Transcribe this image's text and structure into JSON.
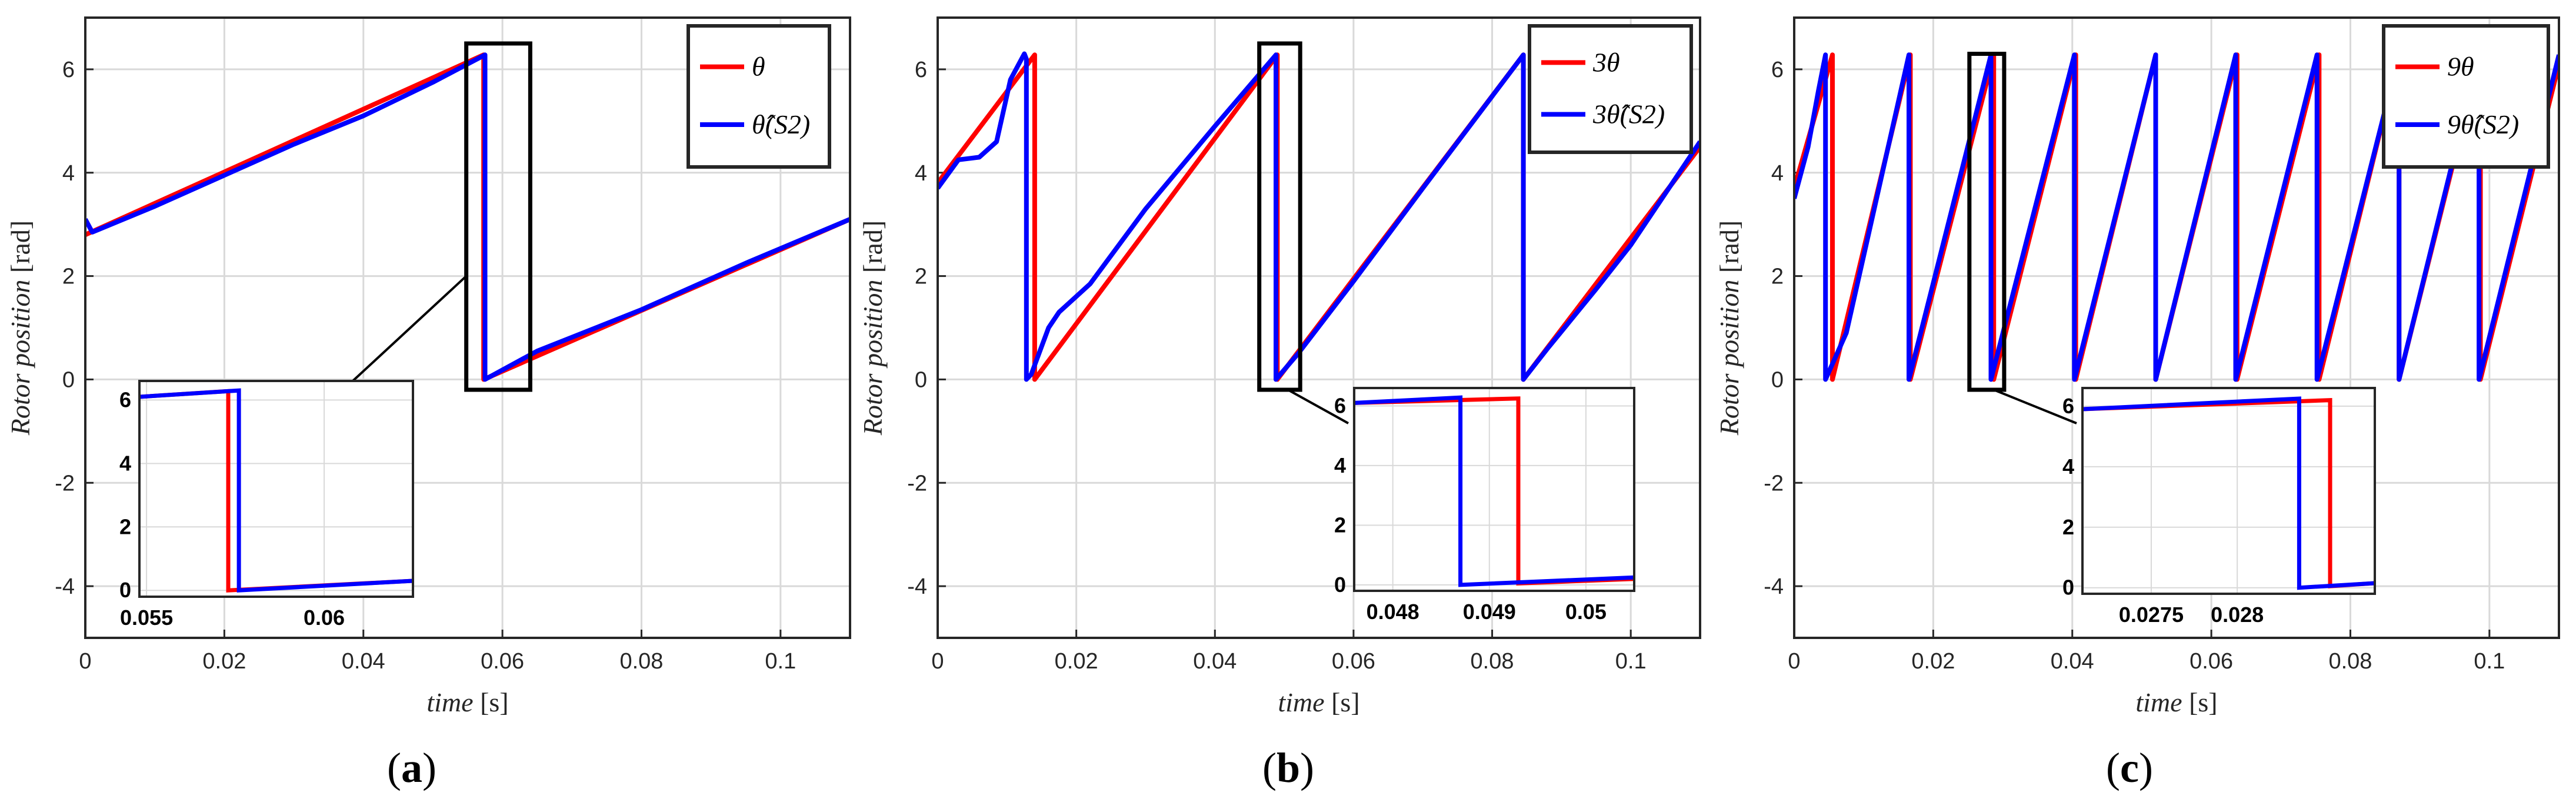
{
  "chart_data": [
    {
      "type": "line",
      "caption": "(a)",
      "xlabel_italic": "time",
      "xlabel_unit": "[s]",
      "ylabel_italic": "Rotor position",
      "ylabel_unit": "[rad]",
      "xlim": [
        0,
        0.11
      ],
      "ylim": [
        -5,
        7
      ],
      "xticks": [
        "0",
        "0.02",
        "0.04",
        "0.06",
        "0.08",
        "0.1"
      ],
      "yticks": [
        "-4",
        "-2",
        "0",
        "2",
        "4",
        "6"
      ],
      "grid": true,
      "legend_position": "top-right",
      "series": [
        {
          "name": "θ",
          "color": "#ff0000",
          "x": [
            0,
            0.0573,
            0.0573,
            0.11
          ],
          "y": [
            2.8,
            6.28,
            0,
            3.1
          ]
        },
        {
          "name": "θ̂(S2)",
          "color": "#0000ff",
          "x": [
            0,
            0.001,
            0.01,
            0.02,
            0.03,
            0.04,
            0.05,
            0.0575,
            0.0575,
            0.065,
            0.08,
            0.095,
            0.11
          ],
          "y": [
            3.1,
            2.85,
            3.35,
            3.95,
            4.55,
            5.1,
            5.75,
            6.28,
            0,
            0.55,
            1.35,
            2.25,
            3.1
          ]
        }
      ],
      "inset": {
        "xlim": [
          0.0548,
          0.0625
        ],
        "ylim": [
          -0.2,
          6.6
        ],
        "xticks": [
          "0.055",
          "0.06"
        ],
        "yticks": [
          "0",
          "2",
          "4",
          "6"
        ],
        "series": [
          {
            "color": "#ff0000",
            "x": [
              0.0548,
              0.0573,
              0.0573,
              0.0625
            ],
            "y": [
              6.1,
              6.28,
              0,
              0.3
            ]
          },
          {
            "color": "#0000ff",
            "x": [
              0.0548,
              0.0576,
              0.0576,
              0.0625
            ],
            "y": [
              6.1,
              6.3,
              0,
              0.3
            ]
          }
        ],
        "box": {
          "xlim": [
            0.0548,
            0.064
          ],
          "ylim": [
            -0.2,
            6.5
          ]
        }
      }
    },
    {
      "type": "line",
      "caption": "(b)",
      "xlabel_italic": "time",
      "xlabel_unit": "[s]",
      "ylabel_italic": "Rotor position",
      "ylabel_unit": "[rad]",
      "xlim": [
        0,
        0.11
      ],
      "ylim": [
        -5,
        7
      ],
      "xticks": [
        "0",
        "0.02",
        "0.04",
        "0.06",
        "0.08",
        "0.1"
      ],
      "yticks": [
        "-4",
        "-2",
        "0",
        "2",
        "4",
        "6"
      ],
      "grid": true,
      "legend_position": "top-right",
      "series": [
        {
          "name": "3θ",
          "color": "#ff0000",
          "x": [
            0,
            0.014,
            0.014,
            0.049,
            0.049,
            0.0845,
            0.0845,
            0.11
          ],
          "y": [
            3.8,
            6.28,
            0,
            6.28,
            0,
            6.28,
            0,
            4.5
          ]
        },
        {
          "name": "3θ̂(S2)",
          "color": "#0000ff",
          "x": [
            0,
            0.003,
            0.006,
            0.0085,
            0.0105,
            0.0125,
            0.0128,
            0.0128,
            0.0135,
            0.016,
            0.0175,
            0.022,
            0.03,
            0.04,
            0.0488,
            0.0488,
            0.052,
            0.06,
            0.07,
            0.0845,
            0.0845,
            0.088,
            0.095,
            0.1,
            0.11
          ],
          "y": [
            3.7,
            4.25,
            4.3,
            4.6,
            5.8,
            6.3,
            6.2,
            0,
            0.1,
            1.0,
            1.3,
            1.85,
            3.3,
            4.9,
            6.28,
            0,
            0.5,
            1.9,
            3.7,
            6.28,
            0,
            0.6,
            1.75,
            2.6,
            4.6
          ]
        }
      ],
      "inset": {
        "xlim": [
          0.0476,
          0.0505
        ],
        "ylim": [
          -0.2,
          6.6
        ],
        "xticks": [
          "0.048",
          "0.049",
          "0.05"
        ],
        "yticks": [
          "0",
          "2",
          "4",
          "6"
        ],
        "series": [
          {
            "color": "#ff0000",
            "x": [
              0.0476,
              0.0493,
              0.0493,
              0.0505
            ],
            "y": [
              6.1,
              6.25,
              0.05,
              0.2
            ]
          },
          {
            "color": "#0000ff",
            "x": [
              0.0476,
              0.0487,
              0.0487,
              0.0505
            ],
            "y": [
              6.1,
              6.28,
              0,
              0.25
            ]
          }
        ],
        "box": {
          "xlim": [
            0.0464,
            0.0523
          ],
          "ylim": [
            -0.2,
            6.5
          ]
        }
      }
    },
    {
      "type": "line",
      "caption": "(c)",
      "xlabel_italic": "time",
      "xlabel_unit": "[s]",
      "ylabel_italic": "Rotor position",
      "ylabel_unit": "[rad]",
      "xlim": [
        0,
        0.11
      ],
      "ylim": [
        -5,
        7
      ],
      "xticks": [
        "0",
        "0.02",
        "0.04",
        "0.06",
        "0.08",
        "0.1"
      ],
      "yticks": [
        "-4",
        "-2",
        "0",
        "2",
        "4",
        "6"
      ],
      "grid": true,
      "legend_position": "top-right",
      "series": [
        {
          "name": "9θ",
          "color": "#ff0000",
          "x": [
            0,
            0.0055,
            0.0055,
            0.0167,
            0.0167,
            0.0287,
            0.0287,
            0.0405,
            0.0405,
            0.052,
            0.052,
            0.0637,
            0.0637,
            0.0755,
            0.0755,
            0.087,
            0.087,
            0.0987,
            0.0987,
            0.11
          ],
          "y": [
            3.7,
            6.28,
            0,
            6.28,
            0,
            6.28,
            0,
            6.28,
            0,
            6.28,
            0,
            6.28,
            0,
            6.28,
            0,
            6.28,
            0,
            6.28,
            0,
            6.1
          ]
        },
        {
          "name": "9θ̂(S2)",
          "color": "#0000ff",
          "x": [
            0,
            0.002,
            0.0035,
            0.0045,
            0.0045,
            0.0075,
            0.0165,
            0.0165,
            0.0283,
            0.0283,
            0.0403,
            0.0403,
            0.052,
            0.052,
            0.0635,
            0.0635,
            0.0752,
            0.0752,
            0.087,
            0.087,
            0.0985,
            0.0985,
            0.11
          ],
          "y": [
            3.5,
            4.5,
            5.6,
            6.28,
            0,
            0.9,
            6.28,
            0,
            6.28,
            0,
            6.28,
            0,
            6.28,
            0,
            6.28,
            0,
            6.28,
            0,
            6.28,
            0,
            6.28,
            0,
            6.28
          ]
        }
      ],
      "inset": {
        "xlim": [
          0.0271,
          0.0288
        ],
        "ylim": [
          -0.2,
          6.6
        ],
        "xticks": [
          "0.0275",
          "0.028"
        ],
        "yticks": [
          "0",
          "2",
          "4",
          "6"
        ],
        "series": [
          {
            "color": "#ff0000",
            "x": [
              0.0271,
              0.02854,
              0.02854,
              0.0288
            ],
            "y": [
              5.9,
              6.2,
              0.05,
              0.15
            ]
          },
          {
            "color": "#0000ff",
            "x": [
              0.0271,
              0.02836,
              0.02836,
              0.0288
            ],
            "y": [
              5.9,
              6.25,
              0,
              0.15
            ]
          }
        ],
        "box": {
          "xlim": [
            0.0252,
            0.0302
          ],
          "ylim": [
            -0.2,
            6.3
          ]
        }
      }
    }
  ]
}
